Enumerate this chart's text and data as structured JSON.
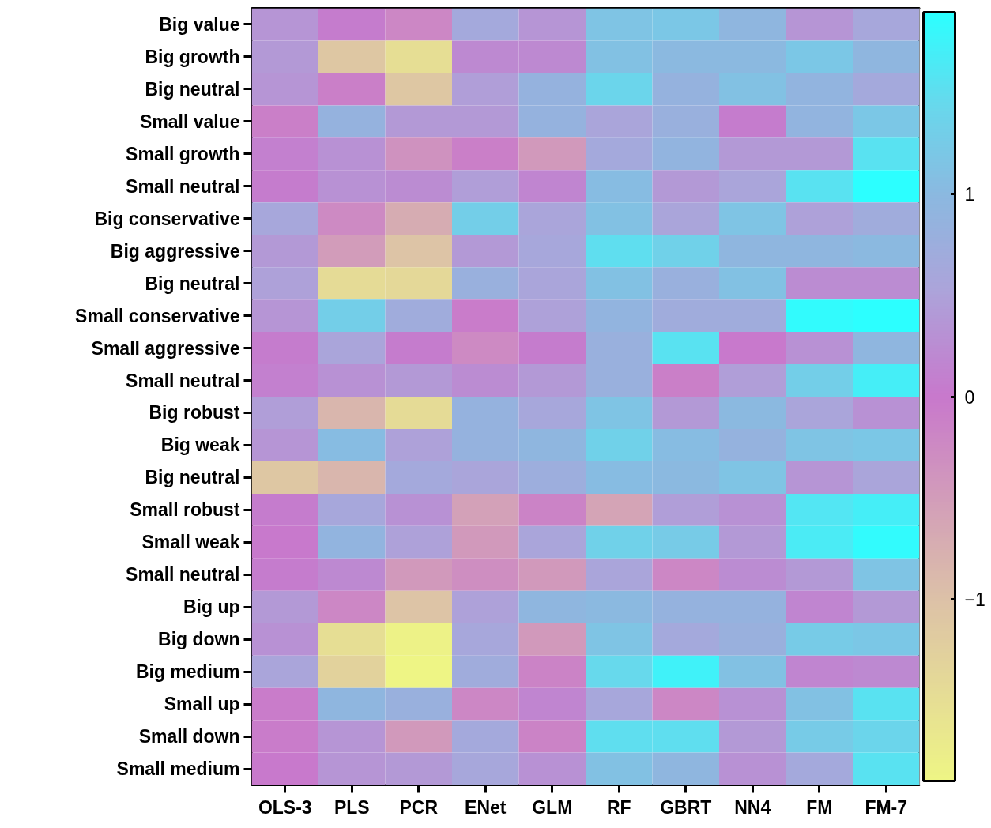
{
  "chart_data": {
    "type": "heatmap",
    "categories": [
      "OLS-3",
      "PLS",
      "PCR",
      "ENet",
      "GLM",
      "RF",
      "GBRT",
      "NN4",
      "FM",
      "FM-7"
    ],
    "y_categories": [
      "Big value",
      "Big growth",
      "Big neutral",
      "Small value",
      "Small growth",
      "Small neutral",
      "Big conservative",
      "Big aggressive",
      "Big neutral",
      "Small conservative",
      "Small aggressive",
      "Small neutral",
      "Big robust",
      "Big weak",
      "Big neutral",
      "Small robust",
      "Small weak",
      "Small neutral",
      "Big up",
      "Big down",
      "Big medium",
      "Small up",
      "Small down",
      "Small medium"
    ],
    "cells": [
      [
        0.35,
        0.05,
        -0.2,
        0.65,
        0.35,
        1.15,
        1.2,
        0.95,
        0.35,
        0.6
      ],
      [
        0.4,
        -1.1,
        -1.5,
        0.2,
        0.2,
        1.1,
        1.0,
        1.0,
        1.2,
        0.95
      ],
      [
        0.35,
        -0.1,
        -1.1,
        0.45,
        0.85,
        1.4,
        0.85,
        1.1,
        0.9,
        0.65
      ],
      [
        -0.1,
        0.85,
        0.4,
        0.4,
        0.85,
        0.55,
        0.8,
        0.05,
        0.9,
        1.2
      ],
      [
        0.1,
        0.3,
        -0.35,
        -0.1,
        -0.45,
        0.65,
        0.9,
        0.4,
        0.4,
        1.55
      ],
      [
        0.05,
        0.3,
        0.25,
        0.45,
        0.15,
        1.05,
        0.4,
        0.55,
        1.55,
        1.9
      ],
      [
        0.6,
        -0.25,
        -0.7,
        1.3,
        0.55,
        1.1,
        0.55,
        1.15,
        0.5,
        0.7
      ],
      [
        0.4,
        -0.5,
        -1.05,
        0.4,
        0.6,
        1.5,
        1.35,
        0.95,
        0.95,
        1.0
      ],
      [
        0.5,
        -1.45,
        -1.4,
        0.8,
        0.55,
        1.1,
        0.8,
        1.1,
        0.25,
        0.25
      ],
      [
        0.35,
        1.3,
        0.7,
        -0.05,
        0.5,
        0.9,
        0.7,
        0.7,
        1.85,
        1.9
      ],
      [
        0.05,
        0.55,
        0.05,
        -0.25,
        0.05,
        0.8,
        1.55,
        0.0,
        0.3,
        0.95
      ],
      [
        0.1,
        0.3,
        0.4,
        0.25,
        0.4,
        0.8,
        -0.1,
        0.45,
        1.3,
        1.7
      ],
      [
        0.45,
        -0.85,
        -1.45,
        0.85,
        0.6,
        1.15,
        0.4,
        1.0,
        0.55,
        0.3
      ],
      [
        0.35,
        1.05,
        0.5,
        0.85,
        0.95,
        1.35,
        1.05,
        0.85,
        1.15,
        1.2
      ],
      [
        -1.1,
        -0.85,
        0.65,
        0.55,
        0.75,
        1.05,
        1.0,
        1.15,
        0.35,
        0.55
      ],
      [
        0.05,
        0.6,
        0.3,
        -0.55,
        -0.15,
        -0.6,
        0.45,
        0.3,
        1.6,
        1.7
      ],
      [
        0.0,
        0.9,
        0.5,
        -0.45,
        0.55,
        1.35,
        1.25,
        0.4,
        1.65,
        1.85
      ],
      [
        0.05,
        0.2,
        -0.45,
        -0.3,
        -0.45,
        0.55,
        -0.2,
        0.25,
        0.4,
        1.15
      ],
      [
        0.4,
        -0.2,
        -1.05,
        0.5,
        0.95,
        1.0,
        0.85,
        0.85,
        0.15,
        0.4
      ],
      [
        0.3,
        -1.5,
        -1.85,
        0.6,
        -0.45,
        1.15,
        0.65,
        0.8,
        1.25,
        1.2
      ],
      [
        0.55,
        -1.3,
        -1.9,
        0.7,
        -0.15,
        1.45,
        1.75,
        1.1,
        0.15,
        0.2
      ],
      [
        -0.05,
        0.95,
        0.8,
        -0.2,
        0.15,
        0.6,
        -0.2,
        0.3,
        1.1,
        1.55
      ],
      [
        -0.05,
        0.35,
        -0.45,
        0.65,
        -0.15,
        1.5,
        1.5,
        0.4,
        1.25,
        1.4
      ],
      [
        0.0,
        0.35,
        0.4,
        0.6,
        0.3,
        1.1,
        0.95,
        0.3,
        0.65,
        1.55
      ]
    ],
    "clim": [
      -1.9,
      1.9
    ],
    "cticks": [
      -1,
      0,
      1
    ]
  }
}
